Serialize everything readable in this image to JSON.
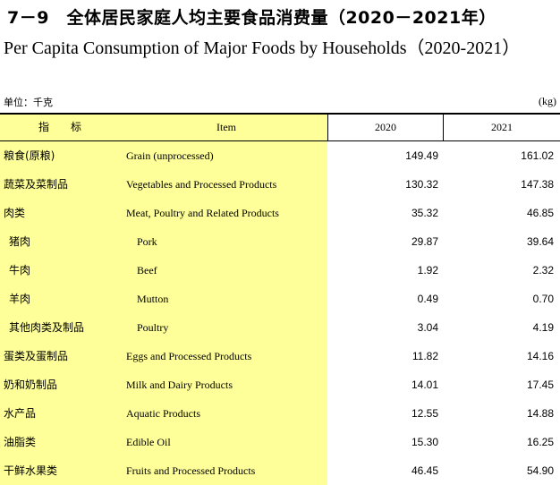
{
  "title_cn": "7－9　全体居民家庭人均主要食品消费量（2020－2021年）",
  "title_en": "Per Capita Consumption of Major Foods by Households（2020-2021）",
  "unit_cn": "单位：千克",
  "unit_en": "(kg)",
  "header": {
    "indicator": "指　标",
    "item": "Item",
    "y2020": "2020",
    "y2021": "2021"
  },
  "rows": [
    {
      "cn": "粮食(原粮)",
      "en": "Grain (unprocessed)",
      "v2020": "149.49",
      "v2021": "161.02"
    },
    {
      "cn": "蔬菜及菜制品",
      "en": "Vegetables and Processed Products",
      "v2020": "130.32",
      "v2021": "147.38"
    },
    {
      "cn": "肉类",
      "en": "Meat, Poultry and Related Products",
      "v2020": "35.32",
      "v2021": "46.85"
    },
    {
      "cn": "猪肉",
      "en": "Pork",
      "v2020": "29.87",
      "v2021": "39.64"
    },
    {
      "cn": "牛肉",
      "en": "Beef",
      "v2020": "1.92",
      "v2021": "2.32"
    },
    {
      "cn": "羊肉",
      "en": "Mutton",
      "v2020": "0.49",
      "v2021": "0.70"
    },
    {
      "cn": "其他肉类及制品",
      "en": "Poultry",
      "v2020": "3.04",
      "v2021": "4.19"
    },
    {
      "cn": "蛋类及蛋制品",
      "en": "Eggs and Processed Products",
      "v2020": "11.82",
      "v2021": "14.16"
    },
    {
      "cn": "奶和奶制品",
      "en": "Milk and Dairy Products",
      "v2020": "14.01",
      "v2021": "17.45"
    },
    {
      "cn": "水产品",
      "en": "Aquatic Products",
      "v2020": "12.55",
      "v2021": "14.88"
    },
    {
      "cn": "油脂类",
      "en": "Edible Oil",
      "v2020": "15.30",
      "v2021": "16.25"
    },
    {
      "cn": "干鲜水果类",
      "en": "Fruits and Processed Products",
      "v2020": "46.45",
      "v2021": "54.90"
    }
  ]
}
